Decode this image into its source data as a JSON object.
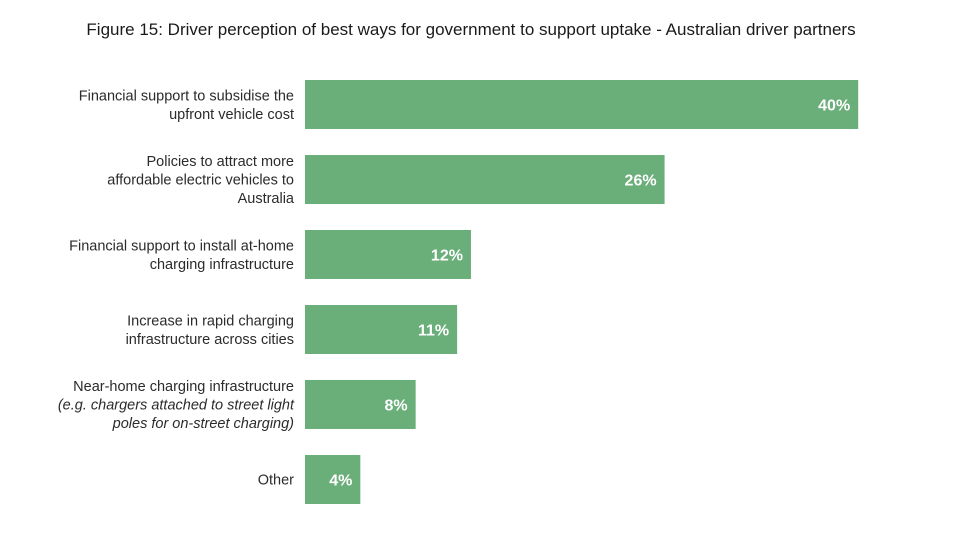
{
  "chart_data": {
    "type": "bar",
    "orientation": "horizontal",
    "title": "Figure 15: Driver perception of best ways for government to support uptake - Australian driver partners",
    "xlabel": "",
    "ylabel": "",
    "xlim": [
      0,
      40
    ],
    "grid": false,
    "legend": "none",
    "bar_color": "#6aae7a",
    "value_suffix": "%",
    "categories": [
      {
        "lines": [
          {
            "text": "Financial support to subsidise the"
          },
          {
            "text": "upfront vehicle cost"
          }
        ]
      },
      {
        "lines": [
          {
            "text": "Policies to attract more"
          },
          {
            "text": "affordable electric vehicles to"
          },
          {
            "text": "Australia"
          }
        ]
      },
      {
        "lines": [
          {
            "text": "Financial support to install at-home"
          },
          {
            "text": "charging infrastructure"
          }
        ]
      },
      {
        "lines": [
          {
            "text": "Increase in rapid charging"
          },
          {
            "text": "infrastructure across cities"
          }
        ]
      },
      {
        "lines": [
          {
            "text": "Near-home charging infrastructure"
          },
          {
            "text": "(e.g. chargers attached to street light",
            "italic": true
          },
          {
            "text": "poles for on-street charging)",
            "italic": true
          }
        ]
      },
      {
        "lines": [
          {
            "text": "Other"
          }
        ]
      }
    ],
    "values": [
      40,
      26,
      12,
      11,
      8,
      4
    ],
    "value_labels": [
      "40%",
      "26%",
      "12%",
      "11%",
      "8%",
      "4%"
    ]
  }
}
